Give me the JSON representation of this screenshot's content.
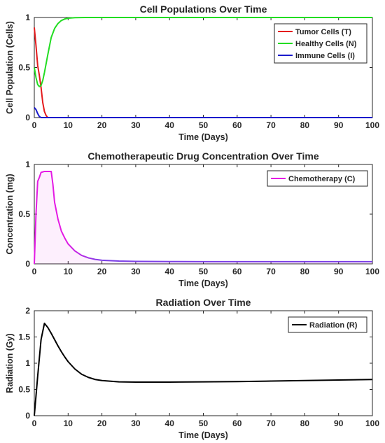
{
  "chart_data": [
    {
      "type": "line",
      "title": "Cell Populations Over Time",
      "xlabel": "Time (Days)",
      "ylabel": "Cell Population (Cells)",
      "xlim": [
        0,
        100
      ],
      "ylim": [
        0,
        1
      ],
      "xticks": [
        "0",
        "10",
        "20",
        "30",
        "40",
        "50",
        "60",
        "70",
        "80",
        "90",
        "100"
      ],
      "yticks": [
        "0",
        "0.5",
        "1"
      ],
      "grid": false,
      "legend_position": "top-right",
      "series": [
        {
          "name": "Tumor Cells (T)",
          "color": "#e41a1c",
          "x": [
            0,
            0.5,
            1,
            1.5,
            2,
            2.5,
            3,
            3.5,
            4,
            6,
            10,
            20,
            40,
            60,
            80,
            100
          ],
          "y": [
            0.9,
            0.72,
            0.52,
            0.42,
            0.3,
            0.15,
            0.06,
            0.02,
            0.0,
            0.0,
            0.0,
            0.0,
            0.0,
            0.0,
            0.0,
            0.0
          ]
        },
        {
          "name": "Healthy Cells (N)",
          "color": "#22dd22",
          "x": [
            0,
            0.5,
            1,
            1.5,
            2,
            2.5,
            3,
            4,
            5,
            6,
            7,
            8,
            9,
            10,
            12,
            15,
            20,
            30,
            50,
            70,
            100
          ],
          "y": [
            0.5,
            0.4,
            0.33,
            0.31,
            0.32,
            0.37,
            0.45,
            0.63,
            0.8,
            0.89,
            0.94,
            0.97,
            0.985,
            0.993,
            0.998,
            1.0,
            1.0,
            1.0,
            1.0,
            1.0,
            1.0
          ]
        },
        {
          "name": "Immune Cells (I)",
          "color": "#1a1acc",
          "x": [
            0,
            0.5,
            1,
            1.5,
            2,
            3,
            5,
            10,
            20,
            40,
            60,
            80,
            100
          ],
          "y": [
            0.1,
            0.08,
            0.04,
            0.01,
            0.0,
            0.0,
            0.0,
            0.0,
            0.0,
            0.0,
            0.0,
            0.0,
            0.0
          ]
        }
      ]
    },
    {
      "type": "area",
      "title": "Chemotherapeutic Drug Concentration Over Time",
      "xlabel": "Time (Days)",
      "ylabel": "Concentration (mg)",
      "xlim": [
        0,
        100
      ],
      "ylim": [
        0,
        1
      ],
      "xticks": [
        "0",
        "10",
        "20",
        "30",
        "40",
        "50",
        "60",
        "70",
        "80",
        "90",
        "100"
      ],
      "yticks": [
        "0",
        "0.5",
        "1"
      ],
      "grid": false,
      "legend_position": "top-right",
      "series": [
        {
          "name": "Chemotherapy (C)",
          "color": "#e41ae4",
          "color_end": "#7b3fe6",
          "x": [
            0,
            0.5,
            1,
            1.5,
            2,
            3,
            4,
            5,
            5.5,
            6,
            7,
            8,
            9,
            10,
            12,
            14,
            16,
            18,
            20,
            25,
            30,
            40,
            50,
            60,
            70,
            80,
            90,
            100
          ],
          "y": [
            0.0,
            0.5,
            0.83,
            0.87,
            0.92,
            0.93,
            0.93,
            0.93,
            0.8,
            0.62,
            0.45,
            0.33,
            0.26,
            0.2,
            0.13,
            0.085,
            0.06,
            0.045,
            0.036,
            0.028,
            0.025,
            0.023,
            0.022,
            0.022,
            0.022,
            0.022,
            0.022,
            0.022
          ]
        }
      ]
    },
    {
      "type": "line",
      "title": "Radiation Over Time",
      "xlabel": "Time (Days)",
      "ylabel": "Radiation (Gy)",
      "xlim": [
        0,
        100
      ],
      "ylim": [
        0,
        2
      ],
      "xticks": [
        "0",
        "10",
        "20",
        "30",
        "40",
        "50",
        "60",
        "70",
        "80",
        "90",
        "100"
      ],
      "yticks": [
        "0",
        "0.5",
        "1",
        "1.5",
        "2"
      ],
      "grid": false,
      "legend_position": "top-right",
      "series": [
        {
          "name": "Radiation (R)",
          "color": "#000000",
          "x": [
            0,
            1,
            2,
            3,
            4,
            5,
            6,
            7,
            8,
            9,
            10,
            12,
            14,
            16,
            18,
            20,
            22,
            25,
            30,
            40,
            50,
            60,
            70,
            80,
            90,
            100
          ],
          "y": [
            0.0,
            0.75,
            1.45,
            1.76,
            1.68,
            1.57,
            1.45,
            1.33,
            1.22,
            1.12,
            1.03,
            0.89,
            0.79,
            0.73,
            0.69,
            0.67,
            0.66,
            0.645,
            0.64,
            0.64,
            0.645,
            0.65,
            0.66,
            0.67,
            0.68,
            0.69
          ]
        }
      ]
    }
  ]
}
